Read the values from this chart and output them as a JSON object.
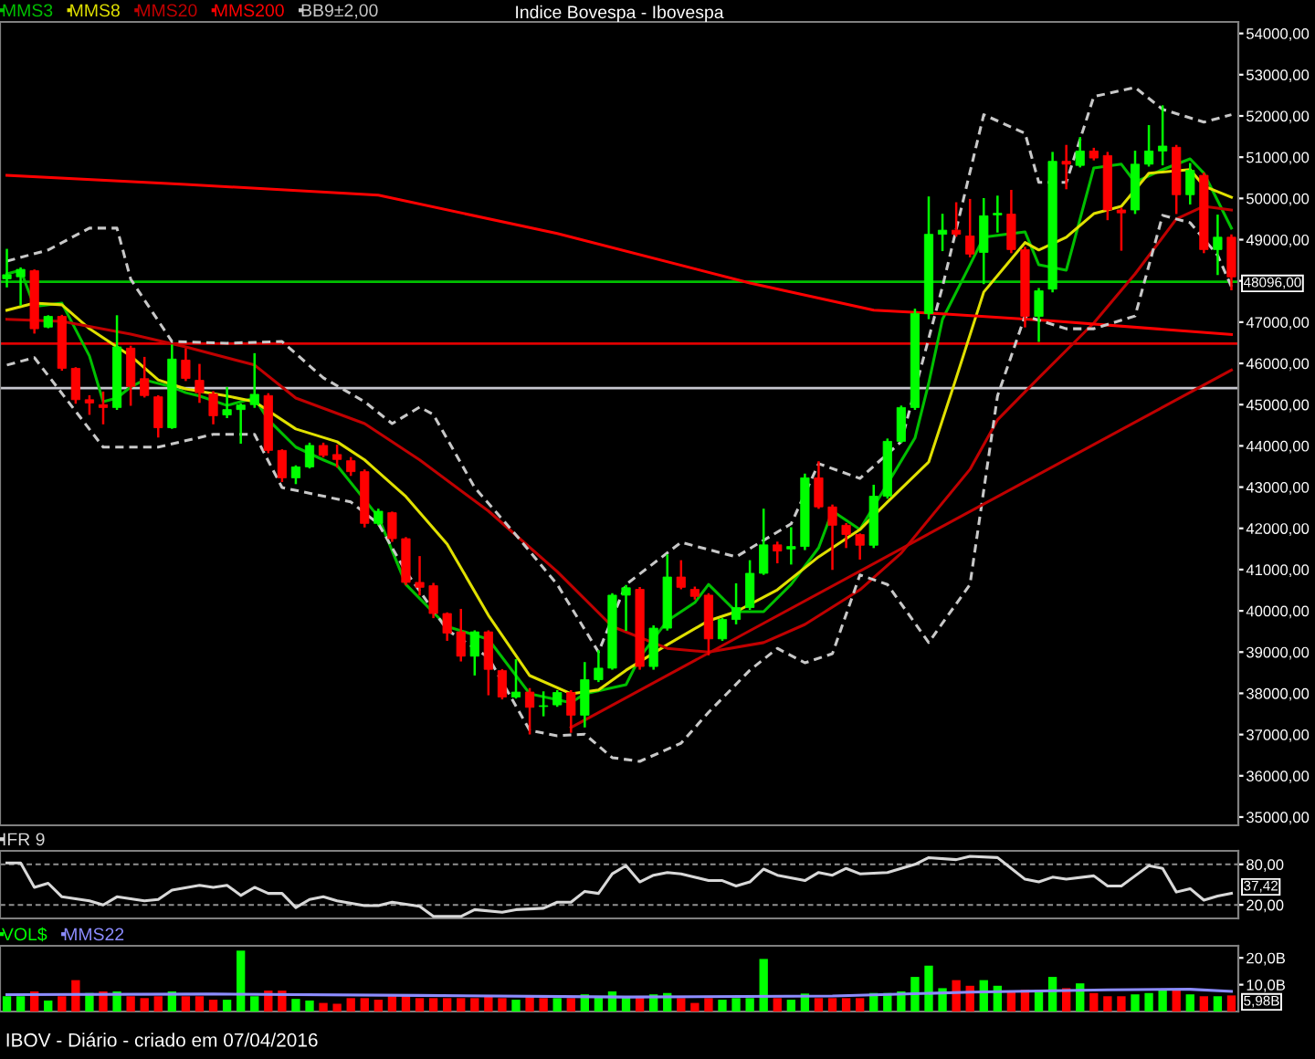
{
  "chart_data": [
    {
      "type": "candlestick",
      "title": "Indice Bovespa - Ibovespa",
      "categories": [
        null,
        null,
        null,
        null,
        null,
        null,
        null,
        null,
        null,
        null,
        null,
        null,
        null,
        null,
        null,
        null,
        null,
        null,
        null,
        null,
        null,
        null,
        null,
        null,
        null,
        null,
        null,
        null,
        null,
        null,
        null,
        null,
        null,
        null,
        null,
        null,
        null,
        null,
        null,
        null,
        null,
        null,
        null,
        null,
        null,
        null,
        null,
        null,
        null,
        null,
        null,
        null,
        null,
        null,
        null,
        null,
        null,
        null,
        null,
        null,
        null,
        null,
        null,
        null,
        null,
        null,
        null,
        null,
        null,
        null,
        null,
        null,
        null,
        null,
        null,
        null,
        null,
        null,
        null,
        null,
        null,
        null,
        null,
        null,
        null,
        null,
        null,
        null,
        null,
        null
      ],
      "ohlc": [
        [
          48050,
          48750,
          47870,
          48150
        ],
        [
          48100,
          48300,
          47430,
          48280
        ],
        [
          48250,
          48250,
          46750,
          46840
        ],
        [
          46880,
          47140,
          46880,
          47140
        ],
        [
          47140,
          47150,
          45850,
          45880
        ],
        [
          45880,
          45880,
          45050,
          45120
        ],
        [
          45120,
          45200,
          44780,
          45040
        ],
        [
          45000,
          45290,
          44550,
          44930
        ],
        [
          44930,
          47140,
          44900,
          46400
        ],
        [
          46370,
          46400,
          45000,
          45440
        ],
        [
          45630,
          46130,
          45200,
          45220
        ],
        [
          45190,
          45200,
          44230,
          44440
        ],
        [
          44440,
          46430,
          44440,
          46105
        ],
        [
          46080,
          46340,
          45600,
          45635
        ],
        [
          45590,
          45960,
          45070,
          45290
        ],
        [
          45260,
          45300,
          44550,
          44730
        ],
        [
          44750,
          45400,
          44700,
          44880
        ],
        [
          44880,
          45000,
          44080,
          44990
        ],
        [
          45000,
          46220,
          44950,
          45250
        ],
        [
          45220,
          45250,
          43850,
          43890
        ],
        [
          43890,
          43890,
          43150,
          43225
        ],
        [
          43225,
          43500,
          43100,
          43490
        ],
        [
          43490,
          44050,
          43480,
          44010
        ],
        [
          44010,
          44050,
          43750,
          43770
        ],
        [
          43790,
          44000,
          43500,
          43670
        ],
        [
          43640,
          43700,
          43300,
          43375
        ],
        [
          43375,
          43400,
          42050,
          42120
        ],
        [
          42120,
          42450,
          42100,
          42415
        ],
        [
          42380,
          42380,
          41700,
          41750
        ],
        [
          41750,
          41760,
          40650,
          40690
        ],
        [
          40690,
          41300,
          40400,
          40570
        ],
        [
          40610,
          40650,
          39850,
          39935
        ],
        [
          39935,
          39935,
          39300,
          39460
        ],
        [
          39490,
          40020,
          38800,
          38900
        ],
        [
          38900,
          39500,
          38460,
          39490
        ],
        [
          39490,
          39500,
          37980,
          38580
        ],
        [
          38550,
          38560,
          37880,
          37910
        ],
        [
          37910,
          38800,
          37900,
          38030
        ],
        [
          38030,
          38100,
          37030,
          37660
        ],
        [
          37680,
          38020,
          37470,
          37700
        ],
        [
          37720,
          38050,
          37700,
          38020
        ],
        [
          38020,
          38050,
          37070,
          37470
        ],
        [
          37470,
          38730,
          37200,
          38330
        ],
        [
          38330,
          39020,
          38300,
          38610
        ],
        [
          38610,
          40400,
          38600,
          40380
        ],
        [
          40380,
          40600,
          39540,
          40560
        ],
        [
          40520,
          40550,
          38600,
          38650
        ],
        [
          38650,
          39620,
          38600,
          39580
        ],
        [
          39580,
          41340,
          39550,
          40820
        ],
        [
          40820,
          41200,
          40550,
          40570
        ],
        [
          40520,
          40560,
          40300,
          40350
        ],
        [
          40380,
          40400,
          38950,
          39320
        ],
        [
          39320,
          39800,
          39300,
          39790
        ],
        [
          39790,
          40640,
          39700,
          40080
        ],
        [
          40080,
          41200,
          40050,
          40910
        ],
        [
          40910,
          42450,
          40900,
          41600
        ],
        [
          41600,
          41650,
          41180,
          41450
        ],
        [
          41500,
          42000,
          41150,
          41560
        ],
        [
          41560,
          43300,
          41500,
          43225
        ],
        [
          43225,
          43600,
          42500,
          42520
        ],
        [
          42520,
          42550,
          41020,
          42075
        ],
        [
          42075,
          42100,
          41550,
          41850
        ],
        [
          41850,
          41850,
          41270,
          41590
        ],
        [
          41590,
          43030,
          41550,
          42780
        ],
        [
          42780,
          44150,
          42750,
          44110
        ],
        [
          44110,
          44950,
          44100,
          44930
        ],
        [
          44930,
          47300,
          44900,
          47210
        ],
        [
          47210,
          50020,
          47100,
          49130
        ],
        [
          49130,
          49600,
          48750,
          49230
        ],
        [
          49230,
          49880,
          49100,
          49130
        ],
        [
          49090,
          49960,
          48600,
          48650
        ],
        [
          48690,
          49980,
          47950,
          49580
        ],
        [
          49600,
          50040,
          49200,
          49640
        ],
        [
          49620,
          50180,
          48700,
          48760
        ],
        [
          48760,
          48800,
          46900,
          47140
        ],
        [
          47140,
          47800,
          46550,
          47760
        ],
        [
          47800,
          51100,
          47750,
          50900
        ],
        [
          50900,
          51270,
          50250,
          50830
        ],
        [
          50800,
          51460,
          50780,
          51150
        ],
        [
          51150,
          51200,
          50950,
          50980
        ],
        [
          51040,
          51100,
          49500,
          49720
        ],
        [
          49720,
          49750,
          48760,
          49650
        ],
        [
          49720,
          51130,
          49650,
          50830
        ],
        [
          50830,
          51750,
          50800,
          51150
        ],
        [
          51150,
          52230,
          50830,
          51270
        ],
        [
          51240,
          51270,
          49650,
          50090
        ],
        [
          50090,
          50830,
          49880,
          50680
        ],
        [
          50560,
          50600,
          48700,
          48760
        ],
        [
          48760,
          49580,
          48170,
          49060
        ],
        [
          49060,
          49100,
          47800,
          48096
        ]
      ],
      "colors": [
        "#00ff00",
        "#00ff00",
        "#ff0000",
        "#00ff00",
        "#ff0000",
        "#ff0000",
        "#ff0000",
        "#ff0000",
        "#00ff00",
        "#ff0000",
        "#ff0000",
        "#ff0000",
        "#00ff00",
        "#ff0000",
        "#ff0000",
        "#ff0000",
        "#00ff00",
        "#00ff00",
        "#00ff00",
        "#ff0000",
        "#ff0000",
        "#00ff00",
        "#00ff00",
        "#ff0000",
        "#ff0000",
        "#ff0000",
        "#ff0000",
        "#00ff00",
        "#ff0000",
        "#ff0000",
        "#ff0000",
        "#ff0000",
        "#ff0000",
        "#ff0000",
        "#00ff00",
        "#ff0000",
        "#ff0000",
        "#00ff00",
        "#ff0000",
        "#00ff00",
        "#00ff00",
        "#ff0000",
        "#00ff00",
        "#00ff00",
        "#00ff00",
        "#00ff00",
        "#ff0000",
        "#00ff00",
        "#00ff00",
        "#ff0000",
        "#ff0000",
        "#ff0000",
        "#00ff00",
        "#00ff00",
        "#00ff00",
        "#00ff00",
        "#ff0000",
        "#00ff00",
        "#00ff00",
        "#ff0000",
        "#ff0000",
        "#ff0000",
        "#ff0000",
        "#00ff00",
        "#00ff00",
        "#00ff00",
        "#00ff00",
        "#00ff00",
        "#00ff00",
        "#ff0000",
        "#ff0000",
        "#00ff00",
        "#00ff00",
        "#ff0000",
        "#ff0000",
        "#00ff00",
        "#00ff00",
        "#ff0000",
        "#00ff00",
        "#ff0000",
        "#ff0000",
        "#ff0000",
        "#00ff00",
        "#00ff00",
        "#00ff00",
        "#ff0000",
        "#00ff00",
        "#ff0000",
        "#00ff00",
        "#ff0000"
      ],
      "series": [
        {
          "name": "MMS3",
          "type": "line",
          "color": "#00c000",
          "values": [
            48170,
            48260,
            47380,
            null,
            47460,
            null,
            46180,
            45070,
            45160,
            45430,
            45600,
            null,
            45430,
            45290,
            45210,
            null,
            44980,
            null,
            45160,
            44630,
            null,
            43970,
            null,
            43660,
            43520,
            null,
            null,
            42280,
            null,
            40640,
            null,
            null,
            39620,
            null,
            null,
            39310,
            null,
            null,
            37990,
            null,
            null,
            37770,
            37990,
            null,
            null,
            38210,
            38870,
            null,
            39760,
            null,
            40200,
            40640,
            null,
            39980,
            null,
            39980,
            null,
            40640,
            null,
            41530,
            42420,
            null,
            41970,
            null,
            43080,
            null,
            44190,
            45520,
            47070,
            null,
            48390,
            49060,
            null,
            null,
            49190,
            48390,
            null,
            48260,
            49500,
            50740,
            null,
            50830,
            50390,
            null,
            50700,
            null,
            50960,
            50610,
            null,
            49280
          ]
        },
        {
          "name": "MMS8",
          "type": "line",
          "color": "#e0e000",
          "values": [
            47290,
            null,
            47460,
            null,
            47420,
            null,
            46840,
            null,
            null,
            46180,
            null,
            45600,
            null,
            45380,
            null,
            null,
            45210,
            null,
            45070,
            null,
            null,
            44410,
            null,
            null,
            44100,
            null,
            43660,
            null,
            null,
            42770,
            null,
            null,
            41620,
            null,
            null,
            39890,
            null,
            null,
            38430,
            null,
            null,
            37990,
            null,
            38080,
            null,
            38560,
            null,
            null,
            39180,
            null,
            null,
            39760,
            null,
            39980,
            null,
            null,
            40510,
            null,
            null,
            41310,
            null,
            null,
            41970,
            null,
            42640,
            null,
            null,
            43610,
            null,
            45650,
            null,
            47730,
            null,
            null,
            48930,
            48750,
            null,
            49060,
            null,
            49630,
            null,
            49810,
            null,
            50610,
            null,
            null,
            50700,
            50300,
            null,
            50030
          ]
        },
        {
          "name": "MMS20",
          "type": "line",
          "color": "#c00000",
          "values": [
            47070,
            null,
            null,
            null,
            47020,
            null,
            null,
            null,
            null,
            46710,
            null,
            null,
            null,
            46400,
            null,
            null,
            null,
            null,
            45960,
            null,
            null,
            45160,
            null,
            null,
            null,
            null,
            44540,
            null,
            null,
            null,
            43660,
            null,
            null,
            null,
            null,
            42420,
            null,
            null,
            null,
            null,
            40950,
            null,
            null,
            null,
            39620,
            null,
            null,
            null,
            39090,
            null,
            null,
            39000,
            null,
            null,
            null,
            39230,
            null,
            null,
            39670,
            null,
            null,
            null,
            40510,
            null,
            null,
            41400,
            null,
            null,
            null,
            null,
            43430,
            null,
            44630,
            null,
            null,
            45650,
            null,
            null,
            null,
            46980,
            null,
            null,
            48170,
            null,
            null,
            49500,
            null,
            49810,
            null,
            49720
          ]
        },
        {
          "name": "MMS200",
          "type": "line",
          "color": "#ff0000",
          "values": [
            50560,
            null,
            null,
            null,
            null,
            null,
            null,
            null,
            null,
            null,
            null,
            null,
            null,
            50340,
            null,
            null,
            null,
            null,
            null,
            null,
            null,
            null,
            null,
            null,
            null,
            null,
            null,
            50080,
            null,
            null,
            null,
            null,
            null,
            null,
            null,
            null,
            null,
            null,
            null,
            null,
            49150,
            null,
            null,
            null,
            null,
            null,
            null,
            null,
            null,
            null,
            null,
            null,
            null,
            null,
            47950,
            null,
            null,
            null,
            null,
            null,
            null,
            null,
            null,
            47290,
            null,
            null,
            null,
            null,
            47200,
            null,
            null,
            null,
            null,
            null,
            null,
            null,
            47030,
            null,
            null,
            null,
            null,
            null,
            null,
            null,
            null,
            null,
            null,
            null,
            null,
            46700
          ]
        },
        {
          "name": "BB9±2,00",
          "type": "line",
          "color": "#c8c8c8",
          "line_style": "dashed",
          "values": [
            48480,
            null,
            null,
            48750,
            null,
            null,
            49280,
            null,
            49280,
            48040,
            null,
            null,
            46530,
            null,
            null,
            null,
            46490,
            null,
            null,
            null,
            46530,
            null,
            null,
            45650,
            null,
            null,
            45070,
            null,
            44540,
            null,
            44940,
            44760,
            null,
            null,
            42990,
            null,
            null,
            41840,
            null,
            null,
            40640,
            null,
            null,
            39000,
            null,
            40640,
            null,
            null,
            null,
            41660,
            null,
            null,
            null,
            41310,
            null,
            null,
            null,
            42110,
            null,
            43570,
            null,
            null,
            43210,
            null,
            null,
            44100,
            null,
            null,
            47860,
            null,
            null,
            52030,
            null,
            null,
            51580,
            50390,
            null,
            50390,
            null,
            52470,
            null,
            null,
            52690,
            null,
            52160,
            null,
            null,
            51850,
            null,
            52030
          ]
        },
        {
          "type": "line",
          "color": "#c8c8c8",
          "line_style": "dashed",
          "values": [
            45960,
            null,
            46140,
            null,
            null,
            null,
            null,
            43970,
            null,
            null,
            null,
            43970,
            null,
            null,
            null,
            44280,
            null,
            null,
            44280,
            null,
            42990,
            null,
            null,
            null,
            null,
            42640,
            null,
            42110,
            null,
            40950,
            null,
            null,
            39540,
            null,
            null,
            38870,
            null,
            null,
            37100,
            null,
            36970,
            null,
            37010,
            null,
            36440,
            null,
            36350,
            null,
            null,
            36790,
            null,
            37540,
            null,
            null,
            38560,
            null,
            39090,
            null,
            38740,
            null,
            38960,
            null,
            40870,
            null,
            40640,
            null,
            null,
            39230,
            null,
            null,
            40640,
            null,
            45210,
            null,
            47150,
            null,
            null,
            46840,
            null,
            46840,
            null,
            null,
            47150,
            null,
            49590,
            null,
            49410,
            null,
            48620,
            47860
          ]
        },
        {
          "type": "line",
          "color": "#c00000",
          "values": [
            null,
            null,
            null,
            null,
            null,
            null,
            null,
            null,
            null,
            null,
            null,
            null,
            null,
            null,
            null,
            null,
            null,
            null,
            null,
            null,
            null,
            null,
            null,
            null,
            null,
            null,
            null,
            null,
            null,
            null,
            null,
            null,
            null,
            null,
            null,
            null,
            null,
            null,
            null,
            null,
            null,
            37170,
            null,
            null,
            null,
            null,
            null,
            null,
            null,
            null,
            null,
            null,
            null,
            null,
            null,
            null,
            null,
            null,
            null,
            null,
            null,
            null,
            null,
            null,
            null,
            null,
            null,
            null,
            null,
            null,
            null,
            null,
            null,
            null,
            null,
            null,
            null,
            null,
            null,
            null,
            null,
            null,
            null,
            null,
            null,
            null,
            null,
            null,
            null,
            45840
          ]
        }
      ],
      "ylim": [
        34800,
        54280
      ],
      "yticks": [
        {
          "value": 35000,
          "label": "35000,00"
        },
        {
          "value": 36000,
          "label": "36000,00"
        },
        {
          "value": 37000,
          "label": "37000,00"
        },
        {
          "value": 38000,
          "label": "38000,00"
        },
        {
          "value": 39000,
          "label": "39000,00"
        },
        {
          "value": 40000,
          "label": "40000,00"
        },
        {
          "value": 41000,
          "label": "41000,00"
        },
        {
          "value": 42000,
          "label": "42000,00"
        },
        {
          "value": 43000,
          "label": "43000,00"
        },
        {
          "value": 44000,
          "label": "44000,00"
        },
        {
          "value": 45000,
          "label": "45000,00"
        },
        {
          "value": 46000,
          "label": "46000,00"
        },
        {
          "value": 47000,
          "label": "47000,00"
        },
        {
          "value": 48000,
          "label": null
        },
        {
          "value": 49000,
          "label": "49000,00"
        },
        {
          "value": 50000,
          "label": "50000,00"
        },
        {
          "value": 51000,
          "label": "51000,00"
        },
        {
          "value": 52000,
          "label": "52000,00"
        },
        {
          "value": 53000,
          "label": "53000,00"
        },
        {
          "value": 54000,
          "label": "54000,00"
        }
      ],
      "ref_lines": [
        {
          "axis": "y",
          "value": 47980,
          "color": "#00c000"
        },
        {
          "axis": "y",
          "value": 46480,
          "color": "#e00000"
        },
        {
          "axis": "y",
          "value": 45400,
          "color": "#c8c8d0"
        }
      ],
      "annotations": [
        "48096,00"
      ],
      "legend": "top left",
      "tick_labels": "y"
    },
    {
      "type": "line",
      "categories": [
        null,
        null,
        null,
        null,
        null,
        null,
        null,
        null,
        null,
        null,
        null,
        null,
        null,
        null,
        null,
        null,
        null,
        null,
        null,
        null,
        null,
        null,
        null,
        null,
        null,
        null,
        null,
        null,
        null,
        null,
        null,
        null,
        null,
        null,
        null,
        null,
        null,
        null,
        null,
        null,
        null,
        null,
        null,
        null,
        null,
        null,
        null,
        null,
        null,
        null,
        null,
        null,
        null,
        null,
        null,
        null,
        null,
        null,
        null,
        null,
        null,
        null,
        null,
        null,
        null,
        null,
        null,
        null,
        null,
        null,
        null,
        null,
        null,
        null,
        null,
        null,
        null,
        null,
        null,
        null,
        null,
        null,
        null,
        null,
        null,
        null,
        null,
        null,
        null,
        null
      ],
      "series": [
        {
          "name": "IFR 9",
          "type": "line",
          "color": "#d8d8d8",
          "values": [
            82,
            82,
            46,
            52,
            32,
            null,
            26,
            20,
            32,
            null,
            26,
            28,
            42,
            null,
            49,
            46,
            49,
            34,
            46,
            37,
            37,
            16,
            28,
            32,
            26,
            null,
            19,
            19,
            24,
            null,
            18,
            3,
            null,
            3,
            13,
            null,
            9,
            13,
            null,
            15,
            24,
            24,
            40,
            37,
            66,
            78,
            54,
            64,
            68,
            66,
            null,
            56,
            56,
            48,
            54,
            73,
            64,
            null,
            56,
            68,
            64,
            74,
            66,
            null,
            68,
            null,
            80,
            90,
            null,
            87,
            92,
            null,
            90,
            74,
            58,
            54,
            61,
            58,
            null,
            63,
            48,
            48,
            63,
            78,
            74,
            39,
            44,
            27,
            33,
            37
          ]
        }
      ],
      "ylim": [
        0,
        100
      ],
      "yticks": [
        {
          "value": 20,
          "label": "20,00"
        },
        {
          "value": 80,
          "label": "80,00"
        }
      ],
      "grid": "y",
      "annotations": [
        "37,42"
      ],
      "legend": "top left",
      "tick_labels": "y"
    },
    {
      "type": "bar",
      "categories": [
        null,
        null,
        null,
        null,
        null,
        null,
        null,
        null,
        null,
        null,
        null,
        null,
        null,
        null,
        null,
        null,
        null,
        null,
        null,
        null,
        null,
        null,
        null,
        null,
        null,
        null,
        null,
        null,
        null,
        null,
        null,
        null,
        null,
        null,
        null,
        null,
        null,
        null,
        null,
        null,
        null,
        null,
        null,
        null,
        null,
        null,
        null,
        null,
        null,
        null,
        null,
        null,
        null,
        null,
        null,
        null,
        null,
        null,
        null,
        null,
        null,
        null,
        null,
        null,
        null,
        null,
        null,
        null,
        null,
        null,
        null,
        null,
        null,
        null,
        null,
        null,
        null,
        null,
        null,
        null,
        null,
        null,
        null,
        null,
        null,
        null,
        null,
        null,
        null,
        null
      ],
      "series": [
        {
          "name": "VOL$",
          "type": "bar",
          "color": "#00ff00",
          "values": [
            5.7,
            5.7,
            7.5,
            4.1,
            5.7,
            11.7,
            6.9,
            7.5,
            7.5,
            5.7,
            5,
            5.7,
            7.5,
            5.7,
            5.7,
            4.4,
            4.4,
            22.7,
            5.7,
            7.8,
            7.8,
            4.7,
            4.1,
            3.2,
            2.9,
            5,
            5,
            4.4,
            5.7,
            5.7,
            5,
            5,
            5,
            5,
            5,
            5.7,
            5,
            4.4,
            5.7,
            5,
            5,
            5,
            6.4,
            5.7,
            7.5,
            5.7,
            5.7,
            6.4,
            6.9,
            5,
            3.2,
            5,
            4.4,
            5,
            5,
            19.6,
            5,
            4.4,
            6.7,
            5,
            5,
            5,
            5,
            6.9,
            6.9,
            7.5,
            12.9,
            17.1,
            8.7,
            11.7,
            9.6,
            11.7,
            9.6,
            7.5,
            8.1,
            8.1,
            12.9,
            8.7,
            10.5,
            6.9,
            5.7,
            5.7,
            6.4,
            6.9,
            8.1,
            8.1,
            6.4,
            5.7,
            5.7,
            6
          ],
          "colors": [
            "#00ff00",
            "#00ff00",
            "#ff0000",
            "#00ff00",
            "#ff0000",
            "#ff0000",
            "#00ff00",
            "#ff0000",
            "#00ff00",
            "#ff0000",
            "#ff0000",
            "#ff0000",
            "#00ff00",
            "#ff0000",
            "#ff0000",
            "#ff0000",
            "#00ff00",
            "#00ff00",
            "#00ff00",
            "#ff0000",
            "#ff0000",
            "#00ff00",
            "#00ff00",
            "#ff0000",
            "#ff0000",
            "#ff0000",
            "#ff0000",
            "#ff0000",
            "#ff0000",
            "#ff0000",
            "#ff0000",
            "#ff0000",
            "#ff0000",
            "#ff0000",
            "#ff0000",
            "#ff0000",
            "#ff0000",
            "#00ff00",
            "#ff0000",
            "#ff0000",
            "#00ff00",
            "#ff0000",
            "#00ff00",
            "#00ff00",
            "#00ff00",
            "#00ff00",
            "#ff0000",
            "#00ff00",
            "#00ff00",
            "#ff0000",
            "#ff0000",
            "#ff0000",
            "#00ff00",
            "#00ff00",
            "#00ff00",
            "#00ff00",
            "#ff0000",
            "#00ff00",
            "#00ff00",
            "#ff0000",
            "#ff0000",
            "#ff0000",
            "#ff0000",
            "#00ff00",
            "#00ff00",
            "#00ff00",
            "#00ff00",
            "#00ff00",
            "#00ff00",
            "#ff0000",
            "#ff0000",
            "#00ff00",
            "#00ff00",
            "#ff0000",
            "#ff0000",
            "#00ff00",
            "#00ff00",
            "#ff0000",
            "#00ff00",
            "#ff0000",
            "#ff0000",
            "#ff0000",
            "#00ff00",
            "#00ff00",
            "#00ff00",
            "#ff0000",
            "#00ff00",
            "#ff0000",
            "#00ff00",
            "#ff0000"
          ]
        },
        {
          "name": "MMS22",
          "type": "line",
          "color": "#8c8cff",
          "values": [
            6.3,
            null,
            null,
            null,
            null,
            null,
            null,
            null,
            null,
            null,
            null,
            null,
            null,
            null,
            null,
            6.5,
            null,
            null,
            null,
            null,
            null,
            null,
            null,
            null,
            null,
            null,
            null,
            null,
            null,
            null,
            6,
            null,
            null,
            null,
            null,
            null,
            null,
            null,
            null,
            null,
            null,
            null,
            null,
            null,
            null,
            5.4,
            null,
            null,
            null,
            null,
            null,
            null,
            null,
            null,
            null,
            null,
            null,
            null,
            null,
            null,
            5.8,
            null,
            null,
            null,
            null,
            null,
            null,
            null,
            null,
            null,
            7.2,
            null,
            null,
            null,
            null,
            null,
            null,
            null,
            null,
            null,
            8.1,
            null,
            null,
            null,
            null,
            null,
            8.3,
            null,
            null,
            7.5
          ]
        }
      ],
      "ylim": [
        0,
        24.5
      ],
      "yticks": [
        {
          "value": 10,
          "label": "10,0B"
        },
        {
          "value": 20,
          "label": "20,0B"
        }
      ],
      "annotations": [
        "5,98B",
        "IBOV - Diário - criado em 07/04/2016"
      ],
      "legend": "top left",
      "tick_labels": "y"
    }
  ]
}
